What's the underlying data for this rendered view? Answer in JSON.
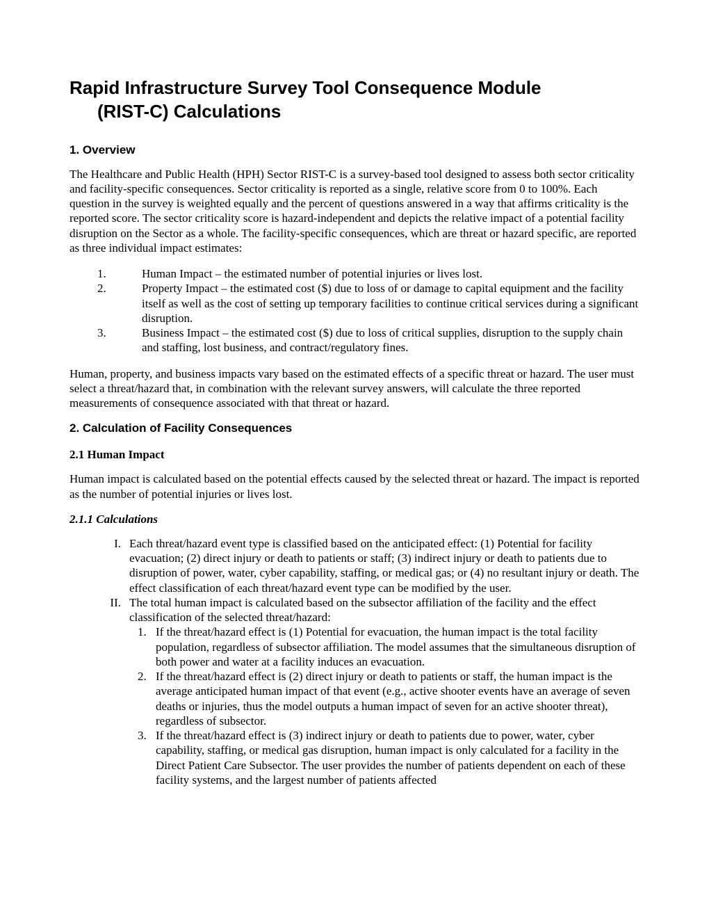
{
  "title_line1": "Rapid Infrastructure Survey Tool Consequence Module",
  "title_line2": "(RIST-C) Calculations",
  "sections": {
    "overview": {
      "heading": "1. Overview",
      "p1": "The Healthcare and Public Health (HPH) Sector RIST-C is a survey-based tool designed to assess both sector criticality and facility-specific consequences. Sector criticality is reported as a single, relative score from 0 to 100%. Each question in the survey is weighted equally and the percent of questions answered in a way that affirms criticality is the reported score. The sector criticality score is hazard-independent and depicts the relative impact of a potential facility disruption on the Sector as a whole. The facility-specific consequences, which are threat or hazard specific, are reported as three individual impact estimates:",
      "list": [
        {
          "num": "1.",
          "text": "Human Impact – the estimated number of potential injuries or lives lost."
        },
        {
          "num": "2.",
          "text": "Property Impact – the estimated cost ($) due to loss of or damage to capital equipment and the facility itself as well as the cost of setting up temporary facilities to continue critical services during a significant disruption."
        },
        {
          "num": "3.",
          "text": "Business Impact – the estimated cost ($) due to loss of critical supplies, disruption to the supply chain and staffing, lost business, and contract/regulatory fines."
        }
      ],
      "p2": "Human, property, and business impacts vary based on the estimated effects of a specific threat or hazard. The user must select a threat/hazard that, in combination with the relevant survey answers, will calculate the three reported measurements of consequence associated with that threat or hazard."
    },
    "calc": {
      "heading": "2. Calculation of Facility Consequences",
      "human": {
        "heading": "2.1 Human Impact",
        "p1": "Human impact is calculated based on the potential effects caused by the selected threat or hazard. The impact is reported as the number of potential injuries or lives lost.",
        "calc_heading": "2.1.1 Calculations",
        "roman": [
          {
            "num": "I.",
            "text": "Each threat/hazard event type is classified based on the anticipated effect: (1) Potential for facility evacuation; (2) direct injury or death to patients or staff; (3) indirect injury or death to patients due to disruption of power, water, cyber capability, staffing, or medical gas; or (4) no resultant injury or death. The effect classification of each threat/hazard event type can be modified by the user."
          },
          {
            "num": "II.",
            "text": "The total human impact is calculated based on the subsector affiliation of the facility and the effect classification of the selected threat/hazard:"
          }
        ],
        "inner": [
          {
            "num": "1.",
            "text": "If the threat/hazard effect is (1) Potential for evacuation, the human impact is the total facility population, regardless of subsector affiliation. The model assumes that the simultaneous disruption of both power and water at a facility induces an evacuation."
          },
          {
            "num": "2.",
            "text": "If the threat/hazard effect is (2) direct injury or death to patients or staff, the human impact is the average anticipated human impact of that event (e.g., active shooter events have an average of seven deaths or injuries, thus the model outputs a human impact of seven for an active shooter threat), regardless of subsector."
          },
          {
            "num": "3.",
            "text": "If the threat/hazard effect is (3) indirect injury or death to patients due to power, water, cyber capability, staffing, or medical gas disruption, human impact is only calculated for a facility in the Direct Patient Care Subsector. The user provides the number of patients dependent on each of these facility systems, and the largest number of patients affected"
          }
        ]
      }
    }
  }
}
